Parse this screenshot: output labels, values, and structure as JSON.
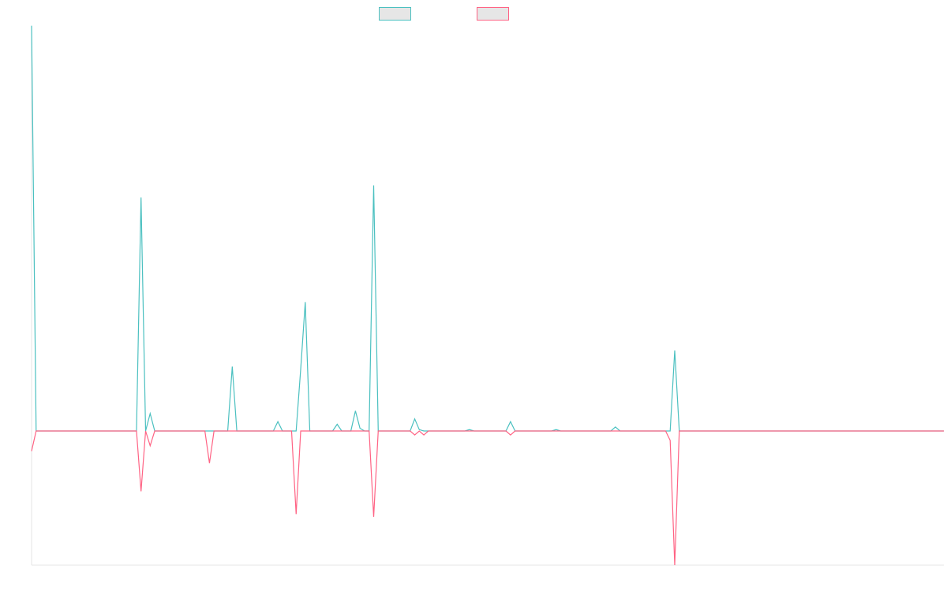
{
  "chart_data": {
    "type": "line",
    "title": "",
    "xlabel": "",
    "ylabel": "",
    "grid": false,
    "legend_placement": "top-center",
    "ylim": [
      -100,
      300
    ],
    "x_count": 201,
    "series": [
      {
        "name": "",
        "color": "#4bc0c0",
        "fill": "#e6e6e6",
        "points": [
          [
            0,
            302
          ],
          [
            1,
            0
          ],
          [
            23,
            0
          ],
          [
            24,
            174
          ],
          [
            25,
            0
          ],
          [
            26,
            13
          ],
          [
            27,
            0
          ],
          [
            43,
            0
          ],
          [
            44,
            48
          ],
          [
            45,
            0
          ],
          [
            53,
            0
          ],
          [
            54,
            7
          ],
          [
            55,
            0
          ],
          [
            58,
            0
          ],
          [
            59,
            46
          ],
          [
            60,
            96
          ],
          [
            61,
            0
          ],
          [
            66,
            0
          ],
          [
            67,
            5
          ],
          [
            68,
            0
          ],
          [
            70,
            0
          ],
          [
            71,
            15
          ],
          [
            72,
            2
          ],
          [
            73,
            0
          ],
          [
            74,
            0
          ],
          [
            75,
            183
          ],
          [
            76,
            0
          ],
          [
            83,
            0
          ],
          [
            84,
            9
          ],
          [
            85,
            1
          ],
          [
            86,
            0
          ],
          [
            95,
            0
          ],
          [
            96,
            1
          ],
          [
            97,
            0
          ],
          [
            104,
            0
          ],
          [
            105,
            7
          ],
          [
            106,
            0
          ],
          [
            114,
            0
          ],
          [
            115,
            1
          ],
          [
            116,
            0
          ],
          [
            127,
            0
          ],
          [
            128,
            3
          ],
          [
            129,
            0
          ],
          [
            136,
            0
          ],
          [
            137,
            0
          ],
          [
            138,
            0
          ],
          [
            139,
            0
          ],
          [
            140,
            0
          ],
          [
            141,
            60
          ],
          [
            142,
            0
          ],
          [
            200,
            0
          ]
        ]
      },
      {
        "name": "",
        "color": "#ff6384",
        "fill": "#e6e6e6",
        "points": [
          [
            0,
            -15
          ],
          [
            1,
            0
          ],
          [
            23,
            0
          ],
          [
            24,
            -45
          ],
          [
            25,
            0
          ],
          [
            26,
            -11
          ],
          [
            27,
            0
          ],
          [
            38,
            0
          ],
          [
            39,
            -24
          ],
          [
            40,
            0
          ],
          [
            57,
            0
          ],
          [
            58,
            -62
          ],
          [
            59,
            0
          ],
          [
            60,
            0
          ],
          [
            66,
            0
          ],
          [
            67,
            0
          ],
          [
            68,
            0
          ],
          [
            74,
            0
          ],
          [
            75,
            -64
          ],
          [
            76,
            0
          ],
          [
            83,
            0
          ],
          [
            84,
            -3
          ],
          [
            85,
            0
          ],
          [
            86,
            -3
          ],
          [
            87,
            0
          ],
          [
            104,
            0
          ],
          [
            105,
            -3
          ],
          [
            106,
            0
          ],
          [
            127,
            0
          ],
          [
            128,
            0
          ],
          [
            129,
            0
          ],
          [
            136,
            0
          ],
          [
            137,
            0
          ],
          [
            138,
            0
          ],
          [
            139,
            0
          ],
          [
            140,
            -7
          ],
          [
            141,
            -100
          ],
          [
            142,
            0
          ],
          [
            200,
            0
          ]
        ]
      }
    ]
  }
}
